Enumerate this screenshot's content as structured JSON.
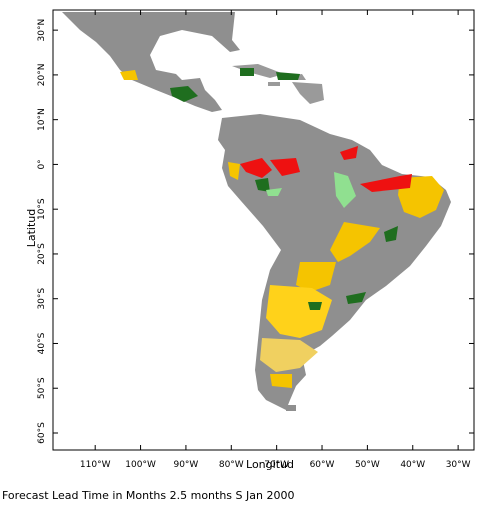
{
  "map": {
    "x_label": "Longitud",
    "y_label": "Latitud",
    "footer": "Forecast Lead Time in Months 2.5 months S Jan 2000",
    "xlim": [
      -119.3,
      -26.5
    ],
    "ylim": [
      -63.8,
      34.5
    ],
    "x_ticks": [
      {
        "value": -110,
        "label": "110°W"
      },
      {
        "value": -100,
        "label": "100°W"
      },
      {
        "value": -90,
        "label": "90°W"
      },
      {
        "value": -80,
        "label": "80°W"
      },
      {
        "value": -70,
        "label": "70°W"
      },
      {
        "value": -60,
        "label": "60°W"
      },
      {
        "value": -50,
        "label": "50°W"
      },
      {
        "value": -40,
        "label": "40°W"
      },
      {
        "value": -30,
        "label": "30°W"
      }
    ],
    "y_ticks": [
      {
        "value": 30,
        "label": "30°N"
      },
      {
        "value": 20,
        "label": "20°N"
      },
      {
        "value": 10,
        "label": "10°N"
      },
      {
        "value": 0,
        "label": "0°"
      },
      {
        "value": -10,
        "label": "10°S"
      },
      {
        "value": -20,
        "label": "20°S"
      },
      {
        "value": -30,
        "label": "30°S"
      },
      {
        "value": -40,
        "label": "40°S"
      },
      {
        "value": -50,
        "label": "50°S"
      },
      {
        "value": -60,
        "label": "60°S"
      }
    ]
  }
}
